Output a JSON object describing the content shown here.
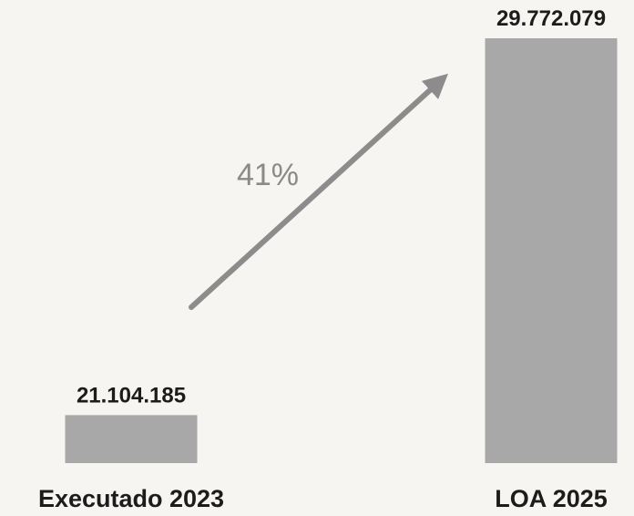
{
  "chart_data": {
    "type": "bar",
    "categories": [
      "Executado 2023",
      "LOA 2025"
    ],
    "values": [
      21104185,
      29772079
    ],
    "data_labels": [
      "21.104.185",
      "29.772.079"
    ],
    "annotation": "41%",
    "colors": {
      "bar": "#a8a8a8",
      "arrow": "#8c8c8c",
      "text": "#1c1c1c",
      "background": "#f6f5f2"
    },
    "grid": false,
    "legend": "none"
  }
}
